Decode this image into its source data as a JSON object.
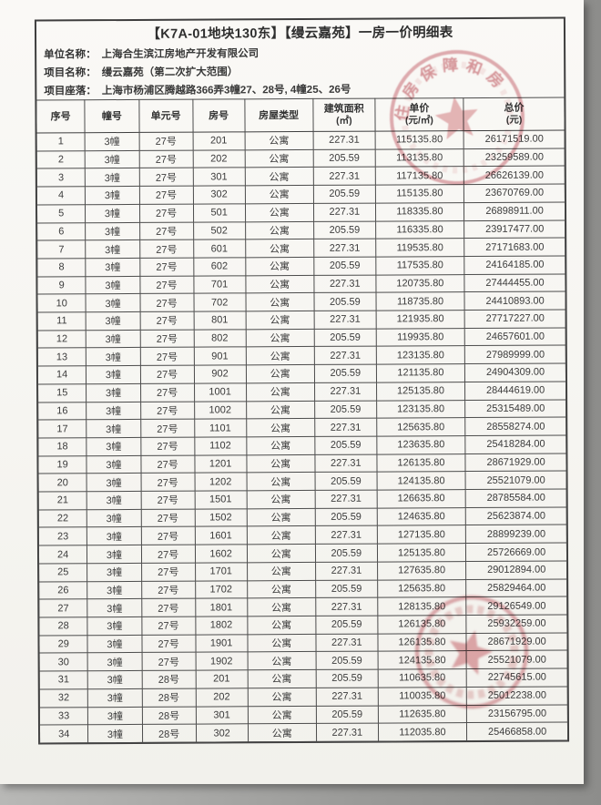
{
  "document": {
    "title": "【K7A-01地块130东】【缦云嘉苑】一房一价明细表",
    "info": [
      {
        "label": "单位名称：",
        "value": "上海合生滨江房地产开发有限公司"
      },
      {
        "label": "项目名称：",
        "value": "缦云嘉苑（第二次扩大范围）"
      },
      {
        "label": "项目座落：",
        "value": "上海市杨浦区腾越路366弄3幢27、28号, 4幢25、26号"
      }
    ]
  },
  "table": {
    "headers": [
      {
        "line1": "序号",
        "line2": ""
      },
      {
        "line1": "幢号",
        "line2": ""
      },
      {
        "line1": "单元号",
        "line2": ""
      },
      {
        "line1": "房号",
        "line2": ""
      },
      {
        "line1": "房屋类型",
        "line2": ""
      },
      {
        "line1": "建筑面积",
        "line2": "(㎡)"
      },
      {
        "line1": "单价",
        "line2": "(元/㎡)"
      },
      {
        "line1": "总价",
        "line2": "(元)"
      }
    ],
    "rows": [
      [
        "1",
        "3幢",
        "27号",
        "201",
        "公寓",
        "227.31",
        "115135.80",
        "26171519.00"
      ],
      [
        "2",
        "3幢",
        "27号",
        "202",
        "公寓",
        "205.59",
        "113135.80",
        "23259589.00"
      ],
      [
        "3",
        "3幢",
        "27号",
        "301",
        "公寓",
        "227.31",
        "117135.80",
        "26626139.00"
      ],
      [
        "4",
        "3幢",
        "27号",
        "302",
        "公寓",
        "205.59",
        "115135.80",
        "23670769.00"
      ],
      [
        "5",
        "3幢",
        "27号",
        "501",
        "公寓",
        "227.31",
        "118335.80",
        "26898911.00"
      ],
      [
        "6",
        "3幢",
        "27号",
        "502",
        "公寓",
        "205.59",
        "116335.80",
        "23917477.00"
      ],
      [
        "7",
        "3幢",
        "27号",
        "601",
        "公寓",
        "227.31",
        "119535.80",
        "27171683.00"
      ],
      [
        "8",
        "3幢",
        "27号",
        "602",
        "公寓",
        "205.59",
        "117535.80",
        "24164185.00"
      ],
      [
        "9",
        "3幢",
        "27号",
        "701",
        "公寓",
        "227.31",
        "120735.80",
        "27444455.00"
      ],
      [
        "10",
        "3幢",
        "27号",
        "702",
        "公寓",
        "205.59",
        "118735.80",
        "24410893.00"
      ],
      [
        "11",
        "3幢",
        "27号",
        "801",
        "公寓",
        "227.31",
        "121935.80",
        "27717227.00"
      ],
      [
        "12",
        "3幢",
        "27号",
        "802",
        "公寓",
        "205.59",
        "119935.80",
        "24657601.00"
      ],
      [
        "13",
        "3幢",
        "27号",
        "901",
        "公寓",
        "227.31",
        "123135.80",
        "27989999.00"
      ],
      [
        "14",
        "3幢",
        "27号",
        "902",
        "公寓",
        "205.59",
        "121135.80",
        "24904309.00"
      ],
      [
        "15",
        "3幢",
        "27号",
        "1001",
        "公寓",
        "227.31",
        "125135.80",
        "28444619.00"
      ],
      [
        "16",
        "3幢",
        "27号",
        "1002",
        "公寓",
        "205.59",
        "123135.80",
        "25315489.00"
      ],
      [
        "17",
        "3幢",
        "27号",
        "1101",
        "公寓",
        "227.31",
        "125635.80",
        "28558274.00"
      ],
      [
        "18",
        "3幢",
        "27号",
        "1102",
        "公寓",
        "205.59",
        "123635.80",
        "25418284.00"
      ],
      [
        "19",
        "3幢",
        "27号",
        "1201",
        "公寓",
        "227.31",
        "126135.80",
        "28671929.00"
      ],
      [
        "20",
        "3幢",
        "27号",
        "1202",
        "公寓",
        "205.59",
        "124135.80",
        "25521079.00"
      ],
      [
        "21",
        "3幢",
        "27号",
        "1501",
        "公寓",
        "227.31",
        "126635.80",
        "28785584.00"
      ],
      [
        "22",
        "3幢",
        "27号",
        "1502",
        "公寓",
        "205.59",
        "124635.80",
        "25623874.00"
      ],
      [
        "23",
        "3幢",
        "27号",
        "1601",
        "公寓",
        "227.31",
        "127135.80",
        "28899239.00"
      ],
      [
        "24",
        "3幢",
        "27号",
        "1602",
        "公寓",
        "205.59",
        "125135.80",
        "25726669.00"
      ],
      [
        "25",
        "3幢",
        "27号",
        "1701",
        "公寓",
        "227.31",
        "127635.80",
        "29012894.00"
      ],
      [
        "26",
        "3幢",
        "27号",
        "1702",
        "公寓",
        "205.59",
        "125635.80",
        "25829464.00"
      ],
      [
        "27",
        "3幢",
        "27号",
        "1801",
        "公寓",
        "227.31",
        "128135.80",
        "29126549.00"
      ],
      [
        "28",
        "3幢",
        "27号",
        "1802",
        "公寓",
        "205.59",
        "126135.80",
        "25932259.00"
      ],
      [
        "29",
        "3幢",
        "27号",
        "1901",
        "公寓",
        "227.31",
        "126135.80",
        "28671929.00"
      ],
      [
        "30",
        "3幢",
        "27号",
        "1902",
        "公寓",
        "205.59",
        "124135.80",
        "25521079.00"
      ],
      [
        "31",
        "3幢",
        "28号",
        "201",
        "公寓",
        "205.59",
        "110635.80",
        "22745615.00"
      ],
      [
        "32",
        "3幢",
        "28号",
        "202",
        "公寓",
        "227.31",
        "110035.80",
        "25012238.00"
      ],
      [
        "33",
        "3幢",
        "28号",
        "301",
        "公寓",
        "205.59",
        "112635.80",
        "23156795.00"
      ],
      [
        "34",
        "3幢",
        "28号",
        "302",
        "公寓",
        "227.31",
        "112035.80",
        "25466858.00"
      ]
    ]
  },
  "seals": {
    "top": {
      "ring_text": "住房保障和房",
      "color": "#c2545e"
    },
    "bottom": {
      "ring_text": "",
      "color": "#c2545e"
    }
  }
}
